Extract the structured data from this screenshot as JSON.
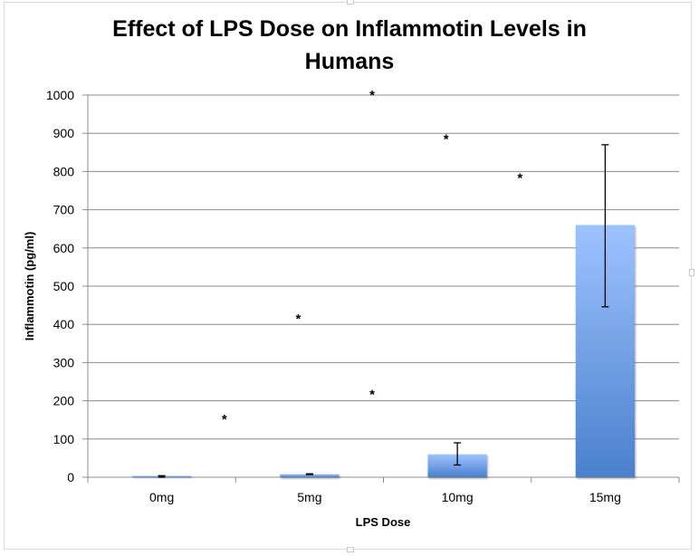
{
  "chart_data": {
    "type": "bar",
    "title": "Effect of LPS Dose on Inflammotin Levels in Humans",
    "title_lines": [
      "Effect of LPS Dose on Inflammotin Levels in",
      "Humans"
    ],
    "xlabel": "LPS Dose",
    "ylabel": "Inflammotin (pg/ml)",
    "categories": [
      "0mg",
      "5mg",
      "10mg",
      "15mg"
    ],
    "values": [
      2,
      8,
      60,
      660
    ],
    "error_bars": [
      {
        "low": 0,
        "high": 4
      },
      {
        "low": 7,
        "high": 9
      },
      {
        "low": 32,
        "high": 90
      },
      {
        "low": 446,
        "high": 870
      }
    ],
    "ylim": [
      0,
      1000
    ],
    "yticks": [
      0,
      100,
      200,
      300,
      400,
      500,
      600,
      700,
      800,
      900,
      1000
    ],
    "grid": true,
    "legend": "none",
    "bar_color_top": "#9dc3ff",
    "bar_color_bottom": "#4a80cc",
    "significance_color": "#4f81bd",
    "significance": [
      {
        "from": "0mg",
        "to": "15mg",
        "y": 950,
        "label": "*"
      },
      {
        "from": "5mg",
        "to": "15mg",
        "y": 847,
        "label": "*"
      },
      {
        "from": "10mg",
        "to": "15mg",
        "y": 745,
        "label": "*"
      },
      {
        "from": "0mg",
        "to": "10mg",
        "y": 365,
        "label": "*"
      },
      {
        "from": "5mg",
        "to": "10mg",
        "y": 178,
        "label": "*"
      },
      {
        "from": "0mg",
        "to": "5mg",
        "y": 113,
        "label": "*"
      }
    ]
  }
}
